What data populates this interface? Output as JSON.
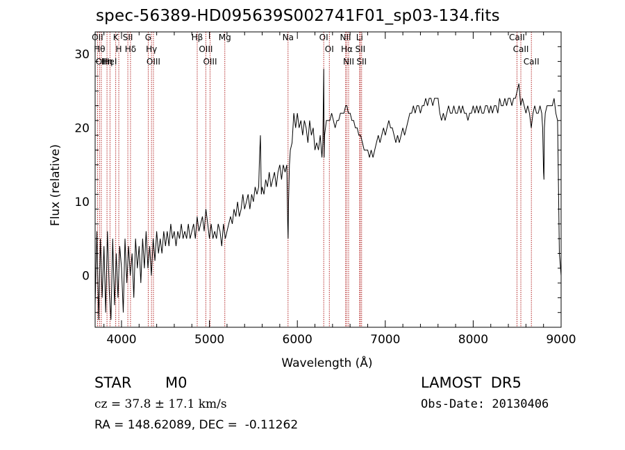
{
  "header": {
    "title": "spec-56389-HD095639S002741F01_sp03-134.fits"
  },
  "info": {
    "object_class": "STAR",
    "subclass": "M0",
    "survey": "LAMOST  DR5",
    "redshift_text": "cz = 37.8 ± 17.1 km/s",
    "obs_date": "Obs-Date: 20130406",
    "coords": "RA = 148.62089, DEC =  -0.11262"
  },
  "chart_data": {
    "type": "line",
    "title": "spec-56389-HD095639S002741F01_sp03-134.fits",
    "xlabel": "Wavelength (Å)",
    "ylabel": "Flux (relative)",
    "xlim": [
      3700,
      9000
    ],
    "ylim": [
      -7,
      33
    ],
    "x_ticks": [
      4000,
      5000,
      6000,
      7000,
      8000,
      9000
    ],
    "y_ticks": [
      0,
      10,
      20,
      30
    ],
    "grid": false,
    "series": [
      {
        "color": "#000000",
        "points": [
          [
            3700,
            -4
          ],
          [
            3720,
            6
          ],
          [
            3740,
            -6
          ],
          [
            3760,
            5
          ],
          [
            3780,
            -3
          ],
          [
            3800,
            4
          ],
          [
            3820,
            -5
          ],
          [
            3840,
            6
          ],
          [
            3860,
            -2
          ],
          [
            3880,
            -6
          ],
          [
            3900,
            5
          ],
          [
            3920,
            -4
          ],
          [
            3940,
            3
          ],
          [
            3960,
            -3
          ],
          [
            3980,
            4
          ],
          [
            4000,
            1
          ],
          [
            4020,
            -5
          ],
          [
            4040,
            5
          ],
          [
            4060,
            -1
          ],
          [
            4080,
            4
          ],
          [
            4100,
            0
          ],
          [
            4120,
            3
          ],
          [
            4140,
            -3
          ],
          [
            4160,
            5
          ],
          [
            4180,
            1
          ],
          [
            4200,
            4
          ],
          [
            4220,
            -1
          ],
          [
            4240,
            5
          ],
          [
            4260,
            1
          ],
          [
            4280,
            6
          ],
          [
            4300,
            1
          ],
          [
            4320,
            4
          ],
          [
            4340,
            0
          ],
          [
            4360,
            5
          ],
          [
            4380,
            2
          ],
          [
            4400,
            6
          ],
          [
            4420,
            3
          ],
          [
            4440,
            5
          ],
          [
            4460,
            3
          ],
          [
            4480,
            6
          ],
          [
            4500,
            4
          ],
          [
            4520,
            6
          ],
          [
            4540,
            4
          ],
          [
            4560,
            7
          ],
          [
            4580,
            5
          ],
          [
            4600,
            6
          ],
          [
            4620,
            4
          ],
          [
            4640,
            6
          ],
          [
            4660,
            5
          ],
          [
            4680,
            7
          ],
          [
            4700,
            5
          ],
          [
            4720,
            6
          ],
          [
            4740,
            5
          ],
          [
            4760,
            7
          ],
          [
            4780,
            5
          ],
          [
            4800,
            6
          ],
          [
            4820,
            7
          ],
          [
            4840,
            5
          ],
          [
            4860,
            8
          ],
          [
            4880,
            6
          ],
          [
            4900,
            7
          ],
          [
            4920,
            8
          ],
          [
            4940,
            6
          ],
          [
            4960,
            9
          ],
          [
            4980,
            7
          ],
          [
            5000,
            5
          ],
          [
            5020,
            7
          ],
          [
            5040,
            5
          ],
          [
            5060,
            6
          ],
          [
            5080,
            5
          ],
          [
            5100,
            7
          ],
          [
            5120,
            6
          ],
          [
            5140,
            4
          ],
          [
            5160,
            7
          ],
          [
            5180,
            5
          ],
          [
            5200,
            6
          ],
          [
            5220,
            7
          ],
          [
            5240,
            8
          ],
          [
            5260,
            7
          ],
          [
            5280,
            9
          ],
          [
            5300,
            8
          ],
          [
            5320,
            10
          ],
          [
            5340,
            8
          ],
          [
            5360,
            9
          ],
          [
            5380,
            11
          ],
          [
            5400,
            9
          ],
          [
            5420,
            10
          ],
          [
            5440,
            11
          ],
          [
            5460,
            9
          ],
          [
            5480,
            11
          ],
          [
            5500,
            10
          ],
          [
            5520,
            12
          ],
          [
            5540,
            11
          ],
          [
            5560,
            12
          ],
          [
            5570,
            16
          ],
          [
            5580,
            19
          ],
          [
            5590,
            11
          ],
          [
            5600,
            12
          ],
          [
            5620,
            11
          ],
          [
            5640,
            13
          ],
          [
            5660,
            12
          ],
          [
            5680,
            14
          ],
          [
            5700,
            12
          ],
          [
            5720,
            13
          ],
          [
            5740,
            14
          ],
          [
            5760,
            12
          ],
          [
            5780,
            14
          ],
          [
            5800,
            15
          ],
          [
            5820,
            13
          ],
          [
            5840,
            15
          ],
          [
            5860,
            14
          ],
          [
            5880,
            15
          ],
          [
            5890,
            7
          ],
          [
            5895,
            5
          ],
          [
            5900,
            10
          ],
          [
            5910,
            15
          ],
          [
            5920,
            17
          ],
          [
            5940,
            18
          ],
          [
            5960,
            22
          ],
          [
            5980,
            20
          ],
          [
            6000,
            22
          ],
          [
            6020,
            20
          ],
          [
            6040,
            21
          ],
          [
            6060,
            19
          ],
          [
            6080,
            21
          ],
          [
            6100,
            20
          ],
          [
            6120,
            18
          ],
          [
            6140,
            21
          ],
          [
            6160,
            19
          ],
          [
            6180,
            20
          ],
          [
            6200,
            17
          ],
          [
            6220,
            18
          ],
          [
            6240,
            17
          ],
          [
            6260,
            19
          ],
          [
            6280,
            16
          ],
          [
            6290,
            18
          ],
          [
            6300,
            28
          ],
          [
            6305,
            16
          ],
          [
            6310,
            19
          ],
          [
            6330,
            21
          ],
          [
            6350,
            21
          ],
          [
            6370,
            21
          ],
          [
            6390,
            22
          ],
          [
            6410,
            21
          ],
          [
            6430,
            20
          ],
          [
            6450,
            21
          ],
          [
            6470,
            21
          ],
          [
            6490,
            22
          ],
          [
            6510,
            22
          ],
          [
            6530,
            22
          ],
          [
            6550,
            23
          ],
          [
            6563,
            23
          ],
          [
            6580,
            22
          ],
          [
            6600,
            22
          ],
          [
            6620,
            21
          ],
          [
            6640,
            21
          ],
          [
            6660,
            20
          ],
          [
            6680,
            20
          ],
          [
            6700,
            19
          ],
          [
            6720,
            19
          ],
          [
            6740,
            18
          ],
          [
            6760,
            17
          ],
          [
            6780,
            17
          ],
          [
            6800,
            17
          ],
          [
            6820,
            16
          ],
          [
            6840,
            17
          ],
          [
            6860,
            16
          ],
          [
            6880,
            17
          ],
          [
            6900,
            18
          ],
          [
            6920,
            19
          ],
          [
            6940,
            18
          ],
          [
            6960,
            19
          ],
          [
            6980,
            20
          ],
          [
            7000,
            19
          ],
          [
            7020,
            20
          ],
          [
            7040,
            21
          ],
          [
            7060,
            20
          ],
          [
            7080,
            20
          ],
          [
            7100,
            19
          ],
          [
            7120,
            18
          ],
          [
            7140,
            19
          ],
          [
            7160,
            18
          ],
          [
            7180,
            19
          ],
          [
            7200,
            20
          ],
          [
            7220,
            19
          ],
          [
            7240,
            20
          ],
          [
            7260,
            21
          ],
          [
            7280,
            22
          ],
          [
            7300,
            22
          ],
          [
            7320,
            23
          ],
          [
            7340,
            22
          ],
          [
            7360,
            23
          ],
          [
            7380,
            23
          ],
          [
            7400,
            22
          ],
          [
            7420,
            23
          ],
          [
            7440,
            23
          ],
          [
            7460,
            24
          ],
          [
            7480,
            23
          ],
          [
            7500,
            24
          ],
          [
            7520,
            24
          ],
          [
            7540,
            23
          ],
          [
            7560,
            24
          ],
          [
            7580,
            24
          ],
          [
            7600,
            24
          ],
          [
            7620,
            22
          ],
          [
            7640,
            21
          ],
          [
            7660,
            22
          ],
          [
            7680,
            21
          ],
          [
            7700,
            22
          ],
          [
            7720,
            23
          ],
          [
            7740,
            22
          ],
          [
            7760,
            22
          ],
          [
            7780,
            23
          ],
          [
            7800,
            22
          ],
          [
            7820,
            22
          ],
          [
            7840,
            23
          ],
          [
            7860,
            22
          ],
          [
            7880,
            23
          ],
          [
            7900,
            22
          ],
          [
            7920,
            22
          ],
          [
            7940,
            21
          ],
          [
            7960,
            22
          ],
          [
            7980,
            22
          ],
          [
            8000,
            23
          ],
          [
            8020,
            22
          ],
          [
            8040,
            23
          ],
          [
            8060,
            22
          ],
          [
            8080,
            23
          ],
          [
            8100,
            22
          ],
          [
            8120,
            22
          ],
          [
            8140,
            23
          ],
          [
            8160,
            23
          ],
          [
            8180,
            22
          ],
          [
            8200,
            23
          ],
          [
            8220,
            22
          ],
          [
            8240,
            23
          ],
          [
            8260,
            23
          ],
          [
            8280,
            22
          ],
          [
            8300,
            24
          ],
          [
            8320,
            23
          ],
          [
            8340,
            23
          ],
          [
            8360,
            24
          ],
          [
            8380,
            23
          ],
          [
            8400,
            24
          ],
          [
            8420,
            24
          ],
          [
            8440,
            23
          ],
          [
            8460,
            24
          ],
          [
            8480,
            24
          ],
          [
            8500,
            25
          ],
          [
            8520,
            26
          ],
          [
            8540,
            23
          ],
          [
            8560,
            24
          ],
          [
            8580,
            23
          ],
          [
            8600,
            22
          ],
          [
            8620,
            23
          ],
          [
            8640,
            22
          ],
          [
            8660,
            20
          ],
          [
            8680,
            22
          ],
          [
            8700,
            23
          ],
          [
            8720,
            22
          ],
          [
            8740,
            22
          ],
          [
            8760,
            23
          ],
          [
            8780,
            22
          ],
          [
            8790,
            20
          ],
          [
            8800,
            14
          ],
          [
            8805,
            13
          ],
          [
            8810,
            20
          ],
          [
            8820,
            22
          ],
          [
            8840,
            23
          ],
          [
            8860,
            23
          ],
          [
            8880,
            23
          ],
          [
            8900,
            23
          ],
          [
            8920,
            24
          ],
          [
            8940,
            22
          ],
          [
            8960,
            21
          ],
          [
            8980,
            3
          ],
          [
            9000,
            0
          ]
        ]
      }
    ],
    "lines": [
      {
        "wavelength": 3727,
        "label": "OII"
      },
      {
        "wavelength": 3750,
        "label": "Hθ"
      },
      {
        "wavelength": 3770,
        "label": "OII"
      },
      {
        "wavelength": 3835,
        "label": "Hη"
      },
      {
        "wavelength": 3869,
        "label": "HeI"
      },
      {
        "wavelength": 3934,
        "label": "K"
      },
      {
        "wavelength": 3969,
        "label": "H"
      },
      {
        "wavelength": 4072,
        "label": "SII"
      },
      {
        "wavelength": 4102,
        "label": "Hδ"
      },
      {
        "wavelength": 4304,
        "label": "G"
      },
      {
        "wavelength": 4341,
        "label": "Hγ"
      },
      {
        "wavelength": 4363,
        "label": "OIII"
      },
      {
        "wavelength": 4861,
        "label": "Hβ"
      },
      {
        "wavelength": 4959,
        "label": "OIII"
      },
      {
        "wavelength": 5007,
        "label": "OIII"
      },
      {
        "wavelength": 5175,
        "label": "Mg"
      },
      {
        "wavelength": 5894,
        "label": "Na"
      },
      {
        "wavelength": 6300,
        "label": "OI"
      },
      {
        "wavelength": 6364,
        "label": "OI"
      },
      {
        "wavelength": 6548,
        "label": "NII"
      },
      {
        "wavelength": 6563,
        "label": "Hα"
      },
      {
        "wavelength": 6583,
        "label": "NII"
      },
      {
        "wavelength": 6708,
        "label": "Li"
      },
      {
        "wavelength": 6716,
        "label": "SII"
      },
      {
        "wavelength": 6731,
        "label": "SII"
      },
      {
        "wavelength": 8498,
        "label": "CaII"
      },
      {
        "wavelength": 8542,
        "label": "CaII"
      },
      {
        "wavelength": 8662,
        "label": "CaII"
      }
    ]
  }
}
